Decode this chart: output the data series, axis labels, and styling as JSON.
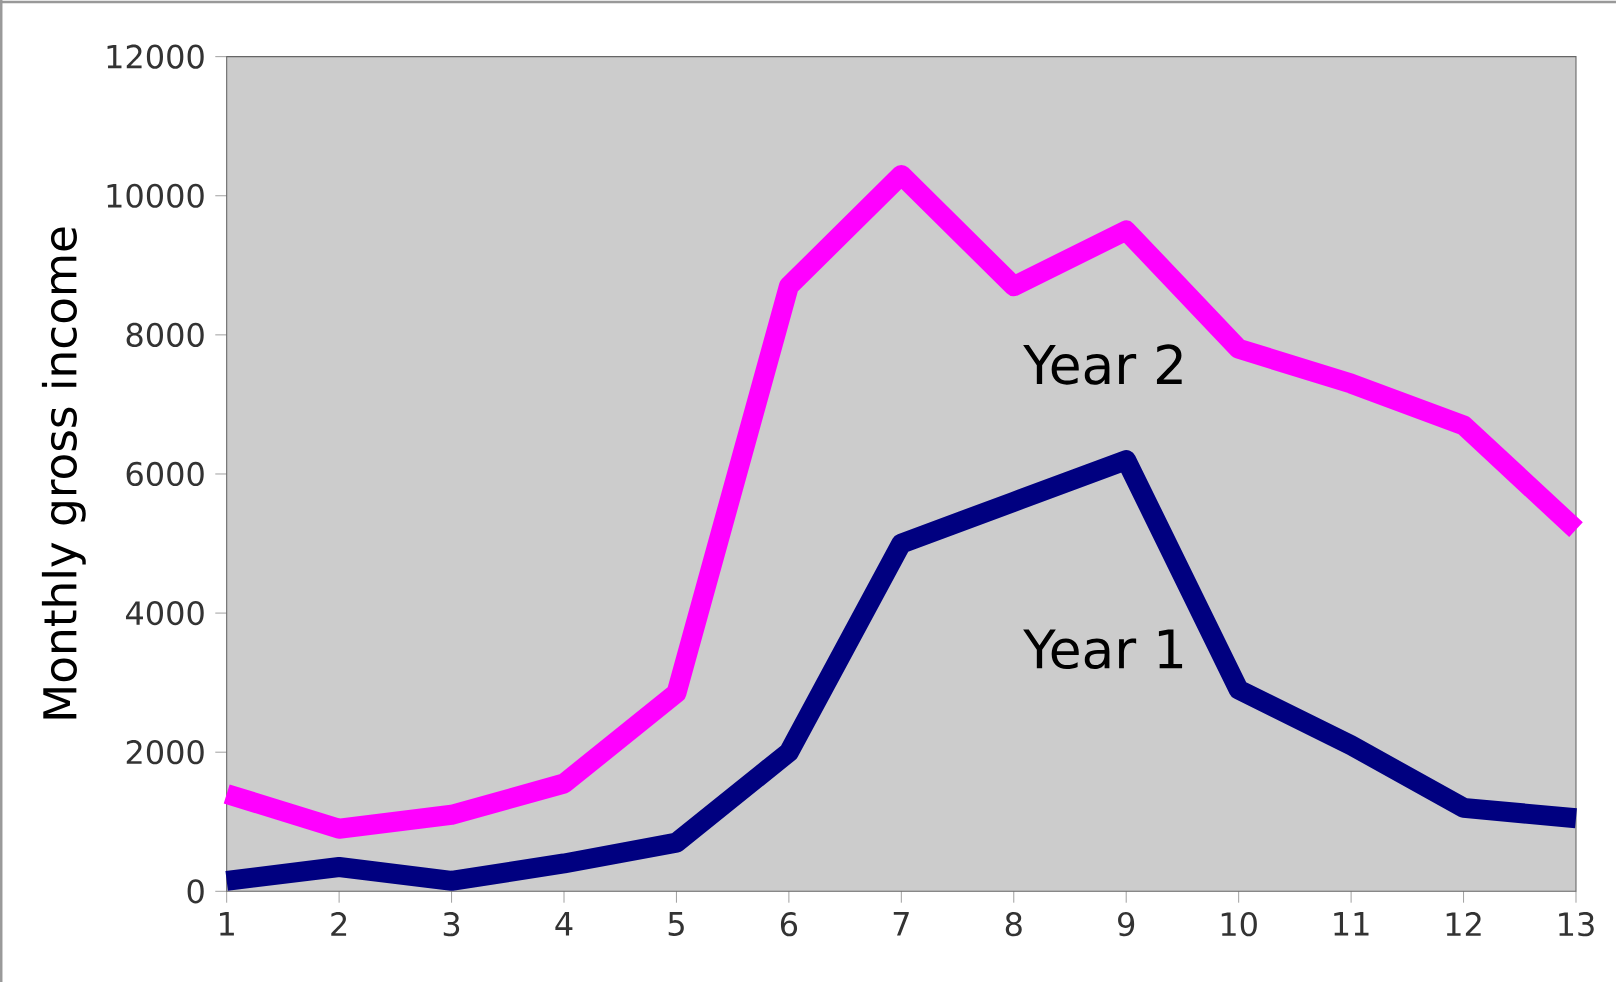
{
  "chart_data": {
    "type": "line",
    "ylabel": "Monthly gross income",
    "x": [
      1,
      2,
      3,
      4,
      5,
      6,
      7,
      8,
      9,
      10,
      11,
      12,
      13
    ],
    "xlim": [
      1,
      13
    ],
    "xticks": [
      1,
      2,
      3,
      4,
      5,
      6,
      7,
      8,
      9,
      10,
      11,
      12,
      13
    ],
    "ylim": [
      0,
      12000
    ],
    "yticks": [
      0,
      2000,
      4000,
      6000,
      8000,
      10000,
      12000
    ],
    "grid": false,
    "legend": false,
    "marker": "none",
    "line_style": "solid",
    "series": [
      {
        "name": "Year 1",
        "color": "#000080",
        "values": [
          150,
          350,
          150,
          400,
          700,
          2000,
          5000,
          5600,
          6200,
          2900,
          2100,
          1200,
          1050
        ]
      },
      {
        "name": "Year 2",
        "color": "#ff00ff",
        "values": [
          1400,
          900,
          1100,
          1550,
          2850,
          8700,
          10300,
          8700,
          9500,
          7800,
          7300,
          6700,
          5200
        ]
      }
    ]
  }
}
